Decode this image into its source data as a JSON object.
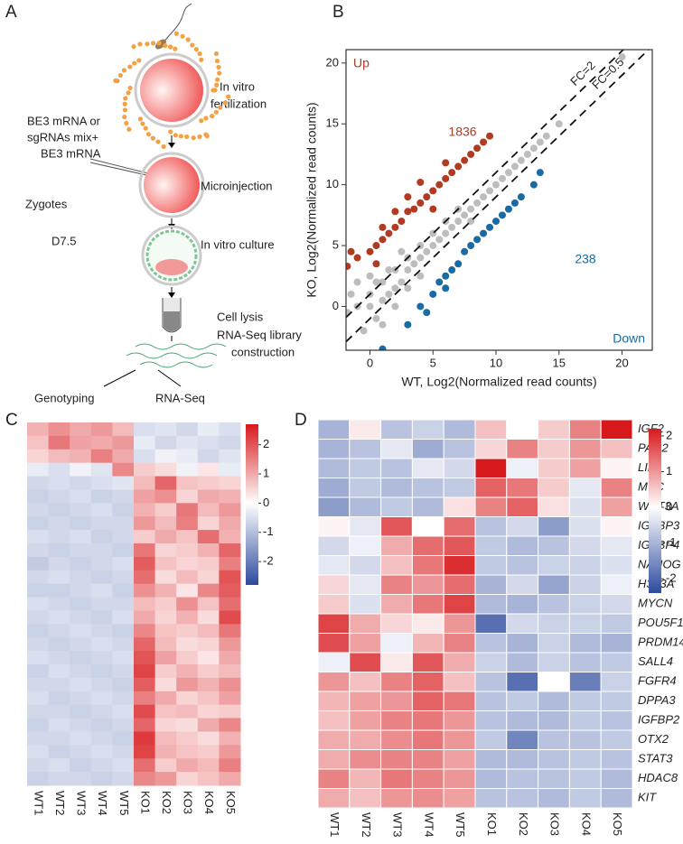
{
  "panel_labels": [
    "A",
    "B",
    "C",
    "D"
  ],
  "diagram": {
    "fertilization": [
      "In vitro",
      "fertilization"
    ],
    "injection_mix": [
      "BE3 mRNA or",
      "sgRNAs mix+",
      "BE3 mRNA"
    ],
    "zygotes": "Zygotes",
    "microinjection": "Microinjection",
    "stage": "D7.5",
    "culture": "In vitro culture",
    "lysis": "Cell lysis",
    "library": [
      "RNA-Seq library",
      "construction"
    ],
    "genotyping": "Genotyping",
    "rnaseq": "RNA-Seq"
  },
  "chart_data": [
    {
      "type": "scatter",
      "xlabel": "WT, Log2(Normalized read counts)",
      "ylabel": "KO, Log2(Normalized read counts)",
      "xlim": [
        -1.9,
        22.4
      ],
      "ylim": [
        -3.6,
        21.1
      ],
      "xticks": [
        0,
        5,
        10,
        15,
        20
      ],
      "yticks": [
        0,
        5,
        10,
        15,
        20
      ],
      "reference_lines": [
        {
          "label": "FC=2",
          "offset": 1
        },
        {
          "label": "FC=0.5",
          "offset": -1
        }
      ],
      "series": [
        {
          "color": "#bdbdbd",
          "x": [
            -1.8,
            -1,
            -1.5,
            0,
            0,
            0.5,
            0.5,
            1,
            1,
            1.5,
            2,
            2,
            2.5,
            3,
            3,
            3.5,
            4,
            4,
            4.5,
            5,
            5,
            5.5,
            6,
            6,
            6.5,
            7,
            7.5,
            8,
            8.5,
            9,
            9.5,
            10,
            10.5,
            11,
            11.5,
            12,
            12.5,
            13,
            13.5,
            14,
            15,
            20,
            -0.5,
            1,
            2,
            0,
            -1,
            3,
            1.5,
            7,
            8,
            4,
            2.5
          ],
          "y": [
            -0.5,
            0,
            1,
            0,
            1,
            -1,
            2,
            0.5,
            2,
            1,
            1.5,
            3,
            2,
            3,
            4,
            3.5,
            4,
            5,
            4.5,
            5,
            6,
            5.5,
            6,
            7,
            6.5,
            7,
            7.5,
            8,
            8.5,
            9,
            9.5,
            10,
            10.5,
            11,
            11.5,
            12,
            12.5,
            13,
            13.5,
            14,
            15,
            20.5,
            -2,
            -1.5,
            0,
            2.5,
            2,
            1.5,
            3,
            8,
            7,
            2.5,
            4.5
          ]
        },
        {
          "name": "Up",
          "count": 1836,
          "color": "#b23a22",
          "x": [
            -1.8,
            -1,
            0,
            0.5,
            1,
            1.5,
            2,
            2.5,
            3,
            3.5,
            4,
            4.5,
            5,
            5.5,
            6,
            6.5,
            7,
            7.5,
            8,
            8.5,
            9,
            9.5,
            4,
            3,
            1,
            -1.5,
            2,
            6,
            0.5,
            5
          ],
          "y": [
            3.3,
            4,
            4.5,
            5,
            5.5,
            6,
            6.5,
            7,
            7.8,
            8,
            8.5,
            9,
            9.5,
            10,
            10.5,
            11,
            11.5,
            12,
            12.5,
            13,
            13.5,
            14,
            10.2,
            9,
            6.5,
            4.5,
            7.8,
            11.8,
            3.5,
            8
          ]
        },
        {
          "name": "Down",
          "count": 238,
          "color": "#1a6aa3",
          "x": [
            1,
            3,
            4,
            5,
            5.5,
            6,
            6.5,
            7,
            7.5,
            8,
            8.5,
            9,
            9.5,
            10,
            10.5,
            11,
            11.5,
            12,
            13,
            13.5,
            4.5,
            6
          ],
          "y": [
            -3.5,
            -1.5,
            0,
            1,
            2,
            2.5,
            3,
            3.5,
            4.5,
            5,
            5.5,
            6,
            6.5,
            7,
            7.5,
            8,
            8.5,
            9,
            10,
            11,
            -0.5,
            1.5
          ]
        }
      ]
    },
    {
      "type": "heatmap",
      "columns": [
        "WT1",
        "WT2",
        "WT3",
        "WT4",
        "WT5",
        "KO1",
        "KO2",
        "KO3",
        "KO4",
        "KO5"
      ],
      "clim": [
        -2.8,
        2.7
      ],
      "cticks": [
        -2,
        -1,
        0,
        1,
        2
      ],
      "colors": [
        "#2c4a9e",
        "#ffffff",
        "#d7191c"
      ],
      "values": [
        [
          0.9,
          1.3,
          1.0,
          1.2,
          0.8,
          -0.5,
          -0.4,
          -0.6,
          -0.3,
          -0.5
        ],
        [
          0.7,
          1.6,
          1.1,
          1.0,
          1.2,
          -0.3,
          -0.6,
          -0.4,
          -0.5,
          -0.6
        ],
        [
          0.5,
          0.8,
          0.9,
          1.5,
          1.0,
          -0.5,
          -0.2,
          -0.3,
          -0.6,
          -0.4
        ],
        [
          -0.3,
          -0.5,
          -0.2,
          -0.4,
          1.4,
          0.6,
          0.4,
          -0.2,
          0.3,
          -0.3
        ],
        [
          -0.6,
          -0.5,
          -0.6,
          -0.5,
          -0.4,
          0.8,
          1.8,
          0.7,
          0.6,
          0.5
        ],
        [
          -0.7,
          -0.6,
          -0.5,
          -0.7,
          -0.6,
          1.1,
          1.3,
          0.5,
          1.0,
          0.9
        ],
        [
          -0.6,
          -0.7,
          -0.6,
          -0.5,
          -0.7,
          0.9,
          0.6,
          1.6,
          0.8,
          1.2
        ],
        [
          -0.7,
          -0.6,
          -0.7,
          -0.6,
          -0.6,
          1.2,
          0.8,
          1.5,
          0.5,
          1.0
        ],
        [
          -0.5,
          -0.6,
          -0.5,
          -0.7,
          -0.6,
          0.6,
          1.0,
          0.7,
          1.7,
          0.9
        ],
        [
          -0.6,
          -0.7,
          -0.6,
          -0.6,
          -0.7,
          1.6,
          0.5,
          0.6,
          0.9,
          1.8
        ],
        [
          -0.8,
          -0.6,
          -0.7,
          -0.6,
          -0.5,
          1.9,
          0.7,
          0.5,
          0.6,
          1.5
        ],
        [
          -0.6,
          -0.5,
          -0.6,
          -0.7,
          -0.6,
          1.7,
          0.4,
          0.8,
          0.5,
          2.0
        ],
        [
          -0.7,
          -0.7,
          -0.6,
          -0.5,
          -0.7,
          1.3,
          0.9,
          0.3,
          1.4,
          1.9
        ],
        [
          -0.5,
          -0.6,
          -0.7,
          -0.6,
          -0.6,
          0.8,
          0.6,
          1.3,
          0.7,
          1.7
        ],
        [
          -0.6,
          -0.5,
          -0.6,
          -0.7,
          -0.5,
          1.0,
          0.5,
          0.9,
          0.4,
          2.1
        ],
        [
          -0.7,
          -0.6,
          -0.5,
          -0.6,
          -0.7,
          1.4,
          0.7,
          0.6,
          0.8,
          1.6
        ],
        [
          -0.6,
          -0.7,
          -0.6,
          -0.5,
          -0.6,
          1.8,
          0.8,
          0.4,
          0.5,
          1.2
        ],
        [
          -0.5,
          -0.6,
          -0.7,
          -0.6,
          -0.5,
          2.0,
          1.1,
          0.6,
          0.3,
          1.0
        ],
        [
          -0.7,
          -0.5,
          -0.6,
          -0.7,
          -0.6,
          2.2,
          0.6,
          0.9,
          0.6,
          0.8
        ],
        [
          -0.6,
          -0.6,
          -0.5,
          -0.6,
          -0.7,
          1.9,
          0.4,
          1.2,
          0.9,
          1.3
        ],
        [
          -0.5,
          -0.7,
          -0.6,
          -0.5,
          -0.6,
          1.5,
          1.0,
          0.5,
          0.7,
          1.1
        ],
        [
          -0.6,
          -0.6,
          -0.7,
          -0.6,
          -0.5,
          2.1,
          0.7,
          0.8,
          0.5,
          0.6
        ],
        [
          -0.7,
          -0.5,
          -0.6,
          -0.7,
          -0.6,
          1.8,
          0.5,
          0.4,
          1.0,
          1.4
        ],
        [
          -0.6,
          -0.6,
          -0.5,
          -0.6,
          -0.7,
          2.3,
          0.8,
          0.6,
          0.4,
          0.9
        ],
        [
          -0.5,
          -0.7,
          -0.6,
          -0.5,
          -0.6,
          2.2,
          0.9,
          0.7,
          0.6,
          1.2
        ],
        [
          -0.6,
          -0.5,
          -0.7,
          -0.6,
          -0.5,
          1.7,
          0.6,
          1.0,
          0.8,
          1.5
        ],
        [
          -0.7,
          -0.6,
          -0.6,
          -0.7,
          -0.6,
          1.4,
          1.2,
          0.5,
          0.7,
          1.0
        ]
      ]
    },
    {
      "type": "heatmap",
      "columns": [
        "WT1",
        "WT2",
        "WT3",
        "WT4",
        "WT5",
        "KO1",
        "KO2",
        "KO3",
        "KO4",
        "KO5"
      ],
      "rows": [
        "IGF2",
        "PAG2",
        "LIF",
        "MYC",
        "WNT3A",
        "IGFBP3",
        "IGFBP4",
        "NANOG",
        "H3F3A",
        "MYCN",
        "POU5F1",
        "PRDM14",
        "SALL4",
        "FGFR4",
        "DPPA3",
        "IGFBP2",
        "OTX2",
        "STAT3",
        "HDAC8",
        "KIT"
      ],
      "clim": [
        -2.4,
        2.2
      ],
      "cticks": [
        -2,
        -1,
        0,
        1,
        2
      ],
      "colors": [
        "#2c4a9e",
        "#ffffff",
        "#d7191c"
      ],
      "values": [
        [
          -1,
          0.2,
          -0.8,
          -0.6,
          -0.9,
          0.6,
          0,
          0.5,
          1.2,
          2.2
        ],
        [
          -1,
          -0.8,
          -0.3,
          -1.1,
          -0.8,
          0.4,
          1.2,
          0.5,
          1.0,
          0.6
        ],
        [
          -0.9,
          -0.7,
          -0.8,
          -0.3,
          -0.5,
          2.2,
          -0.2,
          0.5,
          0.9,
          0.1
        ],
        [
          -1.1,
          -0.7,
          -0.9,
          -0.8,
          -0.7,
          1.5,
          1.3,
          0.5,
          -0.3,
          1.2
        ],
        [
          -1.3,
          -0.9,
          -0.7,
          -0.9,
          0.3,
          1.2,
          1.5,
          0.3,
          -0.4,
          0.9
        ],
        [
          0.1,
          -0.3,
          1.6,
          0,
          1.4,
          -0.8,
          -0.5,
          -1.3,
          -0.4,
          0.1
        ],
        [
          -0.5,
          -0.2,
          0.8,
          1.4,
          1.6,
          -0.7,
          -0.9,
          -0.8,
          -0.5,
          -0.3
        ],
        [
          -0.3,
          -0.5,
          0.6,
          1.3,
          2.0,
          -0.7,
          -0.8,
          -0.6,
          -0.6,
          -0.4
        ],
        [
          0.4,
          -0.3,
          1.2,
          1.0,
          1.4,
          -1.0,
          -0.5,
          -1.2,
          -0.6,
          -0.2
        ],
        [
          0.5,
          -0.4,
          0.8,
          1.3,
          1.8,
          -0.9,
          -1.0,
          -0.8,
          -0.6,
          -0.5
        ],
        [
          1.8,
          0.8,
          0.4,
          0.2,
          1.0,
          -1.9,
          -0.5,
          -0.6,
          -0.6,
          -0.7
        ],
        [
          1.7,
          0.9,
          -0.2,
          0.7,
          1.2,
          -0.8,
          -1.0,
          -0.6,
          -0.9,
          -1.0
        ],
        [
          -0.2,
          1.7,
          0.2,
          1.6,
          0.8,
          -0.6,
          -0.9,
          -0.6,
          -0.8,
          -0.7
        ],
        [
          1.0,
          0.6,
          1.2,
          1.5,
          0.6,
          -0.8,
          -1.9,
          0,
          -1.7,
          -0.6
        ],
        [
          0.7,
          0.9,
          1.0,
          1.5,
          1.3,
          -0.8,
          -0.7,
          -0.9,
          -0.7,
          -0.7
        ],
        [
          0.6,
          0.9,
          1.2,
          1.3,
          1.0,
          -0.8,
          -0.9,
          -0.9,
          -0.7,
          -0.8
        ],
        [
          0.8,
          0.8,
          1.1,
          1.3,
          1.0,
          -0.7,
          -1.6,
          -0.8,
          -0.8,
          -0.7
        ],
        [
          0.8,
          1.1,
          1.2,
          1.2,
          0.9,
          -0.9,
          -0.9,
          -0.8,
          -0.7,
          -0.8
        ],
        [
          1.2,
          0.7,
          1.3,
          1.2,
          1.0,
          -0.9,
          -0.8,
          -0.8,
          -0.7,
          -0.9
        ],
        [
          0.8,
          0.6,
          1.0,
          1.1,
          0.9,
          -0.8,
          -0.8,
          -0.9,
          -0.7,
          -0.9
        ]
      ]
    }
  ]
}
